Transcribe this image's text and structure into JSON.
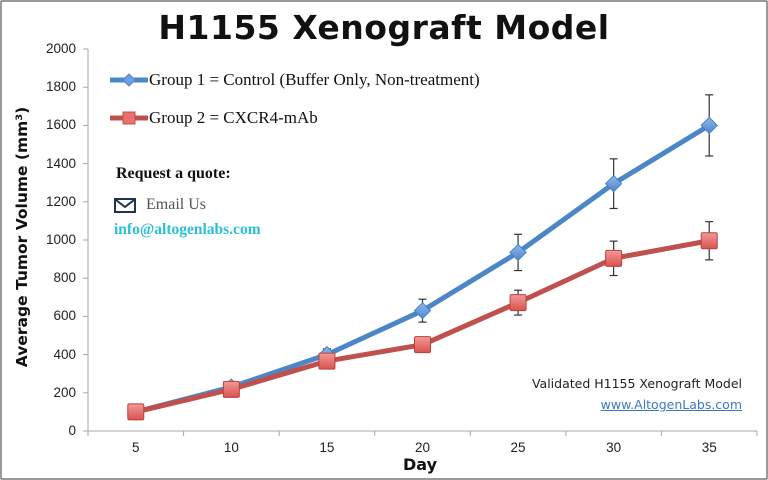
{
  "chart_data": {
    "type": "line",
    "title": "H1155 Xenograft Model",
    "xlabel": "Day",
    "ylabel": "Average Tumor Volume (mm³)",
    "categories": [
      "5",
      "10",
      "15",
      "20",
      "25",
      "30",
      "35"
    ],
    "ylim": [
      0,
      2000
    ],
    "yticks": [
      "0",
      "200",
      "400",
      "600",
      "800",
      "1000",
      "1200",
      "1400",
      "1600",
      "1800",
      "2000"
    ],
    "grid": false,
    "legend_position": "upper-left",
    "series": [
      {
        "name": "Group 1 = Control (Buffer Only, Non-treatment)",
        "color": "#4a86c8",
        "marker": "diamond",
        "values": [
          100,
          230,
          400,
          630,
          935,
          1295,
          1600
        ],
        "error": [
          10,
          20,
          30,
          60,
          95,
          130,
          160
        ]
      },
      {
        "name": "Group 2 = CXCR4-mAb",
        "color": "#c0504d",
        "marker": "square",
        "values": [
          100,
          218,
          366,
          452,
          672,
          904,
          996
        ],
        "error": [
          8,
          15,
          20,
          25,
          65,
          90,
          100
        ]
      }
    ]
  },
  "legend": {
    "items": [
      {
        "label": "Group 1 = Control (Buffer Only, Non-treatment)"
      },
      {
        "label": "Group 2 = CXCR4-mAb"
      }
    ]
  },
  "contact": {
    "heading": "Request a quote:",
    "email_label": "Email Us",
    "email_address": "info@altogenlabs.com"
  },
  "footer": {
    "caption": "Validated H1155 Xenograft Model",
    "website": "www.AltogenLabs.com"
  }
}
